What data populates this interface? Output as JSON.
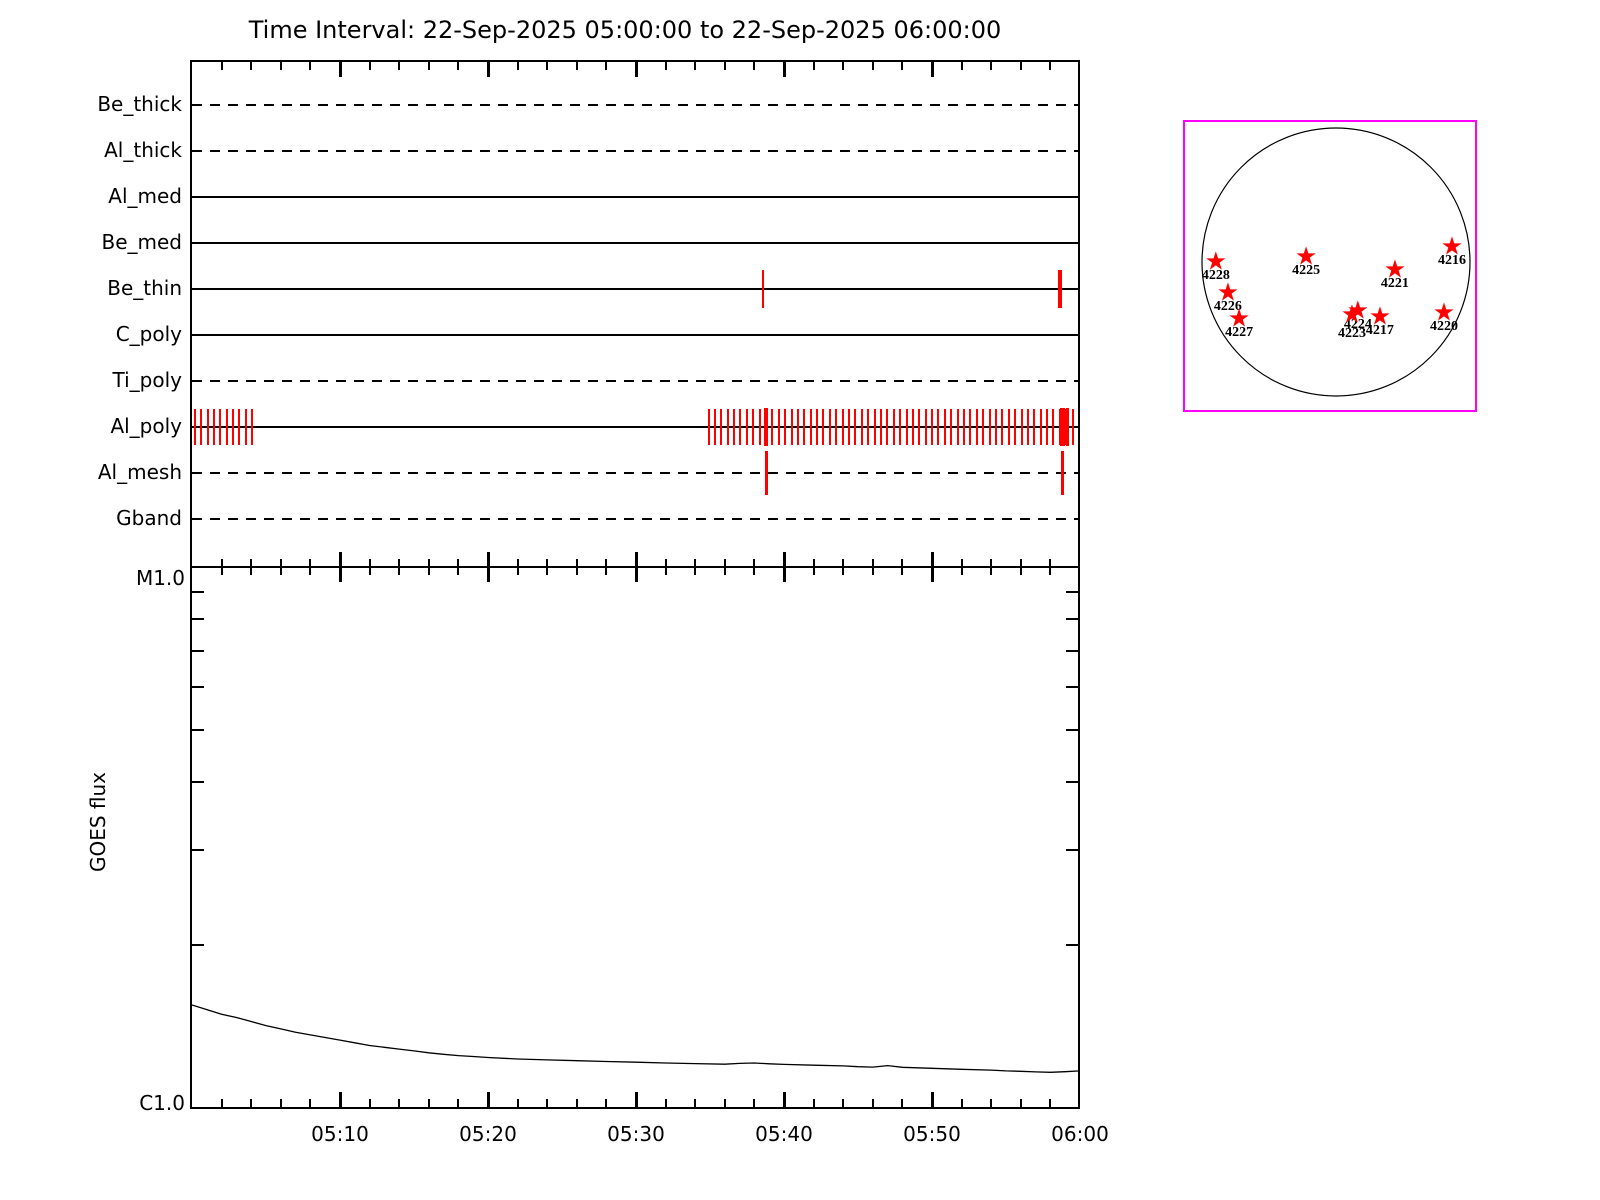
{
  "title": "Time Interval: 22-Sep-2025 05:00:00 to 22-Sep-2025 06:00:00",
  "colors": {
    "background": "#ffffff",
    "line_black": "#000000",
    "exposure_red": "#ff0000",
    "disk_box_magenta": "#ff00ff"
  },
  "chart_data": [
    {
      "id": "xrt_filter_timeline",
      "type": "timeline",
      "x_axis": {
        "start": "05:00:00",
        "end": "06:00:00",
        "duration_minutes": 60,
        "minor_tick_minutes": 2,
        "major_tick_minutes": 10
      },
      "channels": [
        {
          "label": "Be_thick",
          "line_style": "dashed",
          "marks": [],
          "mark_groups": []
        },
        {
          "label": "Al_thick",
          "line_style": "dashed",
          "marks": [],
          "mark_groups": []
        },
        {
          "label": "Al_med",
          "line_style": "solid",
          "marks": [],
          "mark_groups": []
        },
        {
          "label": "Be_med",
          "line_style": "solid",
          "marks": [],
          "mark_groups": []
        },
        {
          "label": "Be_thin",
          "line_style": "solid",
          "marks": [
            {
              "t_min": 38.6,
              "weight": 2
            },
            {
              "t_min": 58.65,
              "weight": 4
            }
          ],
          "mark_groups": []
        },
        {
          "label": "C_poly",
          "line_style": "solid",
          "marks": [],
          "mark_groups": []
        },
        {
          "label": "Ti_poly",
          "line_style": "dashed",
          "marks": [],
          "mark_groups": []
        },
        {
          "label": "Al_poly",
          "line_style": "solid",
          "marks": [
            {
              "t_min": 38.75,
              "weight": 4
            },
            {
              "t_min": 58.8,
              "weight": 5
            },
            {
              "t_min": 59.15,
              "weight": 3
            }
          ],
          "mark_groups": [
            {
              "start_min": 0.2,
              "end_min": 4.05,
              "count": 10
            },
            {
              "start_min": 34.9,
              "end_min": 59.5,
              "count": 58
            }
          ]
        },
        {
          "label": "Al_mesh",
          "line_style": "dashed",
          "marks": [
            {
              "t_min": 38.85,
              "weight": 3,
              "tall": true
            },
            {
              "t_min": 58.85,
              "weight": 3,
              "tall": true
            }
          ],
          "mark_groups": []
        },
        {
          "label": "Gband",
          "line_style": "dashed",
          "marks": [],
          "mark_groups": []
        }
      ]
    },
    {
      "id": "goes_flux",
      "type": "line",
      "ylabel": "GOES flux",
      "y_axis": {
        "scale": "log",
        "top_label": "M1.0",
        "bottom_label": "C1.0",
        "minor_ticks_c_units": [
          2,
          3,
          4,
          5,
          6,
          7,
          8,
          9
        ]
      },
      "x_tick_labels": [
        {
          "t_min": 10,
          "label": "05:10"
        },
        {
          "t_min": 20,
          "label": "05:20"
        },
        {
          "t_min": 30,
          "label": "05:30"
        },
        {
          "t_min": 40,
          "label": "05:40"
        },
        {
          "t_min": 50,
          "label": "05:50"
        },
        {
          "t_min": 60,
          "label": "06:00"
        }
      ],
      "series": [
        {
          "name": "GOES flux",
          "points_min_cunits": [
            [
              0,
              1.55
            ],
            [
              1,
              1.52
            ],
            [
              2,
              1.49
            ],
            [
              3,
              1.47
            ],
            [
              4,
              1.445
            ],
            [
              5,
              1.42
            ],
            [
              6,
              1.4
            ],
            [
              7,
              1.38
            ],
            [
              8,
              1.365
            ],
            [
              9,
              1.35
            ],
            [
              10,
              1.335
            ],
            [
              11,
              1.32
            ],
            [
              12,
              1.305
            ],
            [
              13,
              1.295
            ],
            [
              14,
              1.285
            ],
            [
              15,
              1.275
            ],
            [
              16,
              1.265
            ],
            [
              17,
              1.257
            ],
            [
              18,
              1.25
            ],
            [
              19,
              1.245
            ],
            [
              20,
              1.24
            ],
            [
              22,
              1.232
            ],
            [
              24,
              1.227
            ],
            [
              26,
              1.223
            ],
            [
              28,
              1.219
            ],
            [
              30,
              1.215
            ],
            [
              32,
              1.211
            ],
            [
              34,
              1.208
            ],
            [
              36,
              1.205
            ],
            [
              37,
              1.209
            ],
            [
              38,
              1.211
            ],
            [
              39,
              1.207
            ],
            [
              40,
              1.204
            ],
            [
              42,
              1.2
            ],
            [
              44,
              1.196
            ],
            [
              45,
              1.192
            ],
            [
              46,
              1.19
            ],
            [
              47,
              1.198
            ],
            [
              48,
              1.189
            ],
            [
              50,
              1.184
            ],
            [
              52,
              1.179
            ],
            [
              54,
              1.175
            ],
            [
              55,
              1.171
            ],
            [
              56,
              1.169
            ],
            [
              57,
              1.166
            ],
            [
              58,
              1.164
            ],
            [
              59,
              1.167
            ],
            [
              60,
              1.171
            ]
          ]
        }
      ]
    },
    {
      "id": "solar_disk_active_regions",
      "type": "scatter",
      "marker": "star",
      "active_regions": [
        {
          "label": "4228",
          "fx": 0.105,
          "fy": 0.479
        },
        {
          "label": "4226",
          "fx": 0.146,
          "fy": 0.586
        },
        {
          "label": "4227",
          "fx": 0.184,
          "fy": 0.675
        },
        {
          "label": "4225",
          "fx": 0.412,
          "fy": 0.462
        },
        {
          "label": "4224",
          "fx": 0.588,
          "fy": 0.647
        },
        {
          "label": "4223",
          "fx": 0.568,
          "fy": 0.661,
          "label_dy": 12
        },
        {
          "label": "4217",
          "fx": 0.663,
          "fy": 0.668
        },
        {
          "label": "4221",
          "fx": 0.714,
          "fy": 0.507
        },
        {
          "label": "4216",
          "fx": 0.908,
          "fy": 0.428
        },
        {
          "label": "4220",
          "fx": 0.881,
          "fy": 0.654
        }
      ]
    }
  ]
}
